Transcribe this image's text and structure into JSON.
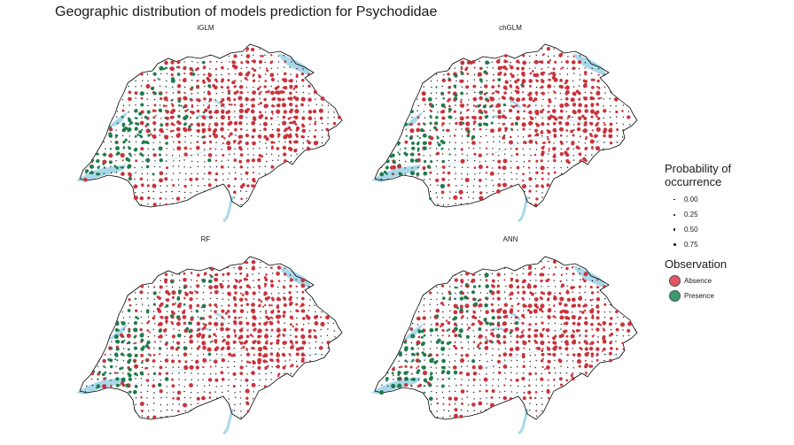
{
  "title": "Geographic distribution of models prediction for Psychodidae",
  "panels": [
    {
      "label": "iGLM",
      "seed": 11
    },
    {
      "label": "chGLM",
      "seed": 23
    },
    {
      "label": "RF",
      "seed": 37
    },
    {
      "label": "ANN",
      "seed": 53
    }
  ],
  "legend": {
    "probability_title_line1": "Probability of",
    "probability_title_line2": "occurrence",
    "probability_levels": [
      {
        "label": "0.00",
        "value": 0.0
      },
      {
        "label": "0.25",
        "value": 0.25
      },
      {
        "label": "0.50",
        "value": 0.5
      },
      {
        "label": "0.75",
        "value": 0.75
      }
    ],
    "observation_title": "Observation",
    "observations": [
      {
        "label": "Absence",
        "color": "#e05660"
      },
      {
        "label": "Presence",
        "color": "#3a9a6c"
      }
    ]
  },
  "colors": {
    "absence": "#c8333c",
    "presence": "#1f7a4d",
    "water": "#a8d8ea",
    "border": "#000000",
    "rivers": "#c5e4f0"
  }
}
